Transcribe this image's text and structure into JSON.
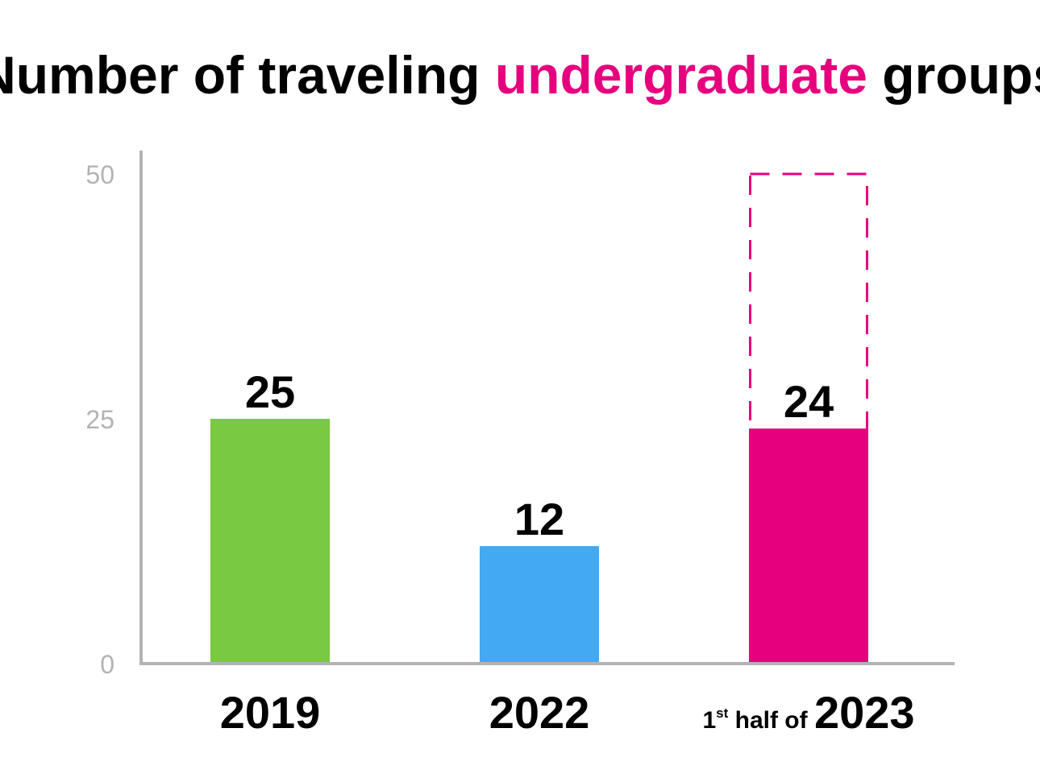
{
  "chart_data": {
    "type": "bar",
    "title_parts": [
      {
        "text": "Number of traveling ",
        "color": "#000000"
      },
      {
        "text": "undergraduate",
        "color": "#e6007e"
      },
      {
        "text": " groups",
        "color": "#000000"
      }
    ],
    "categories": [
      {
        "prefix": "",
        "prefix_sup": "",
        "prefix_rest": "",
        "label": "2019"
      },
      {
        "prefix": "",
        "prefix_sup": "",
        "prefix_rest": "",
        "label": "2022"
      },
      {
        "prefix": "1",
        "prefix_sup": "st",
        "prefix_rest": " half of ",
        "label": "2023"
      }
    ],
    "values": [
      25,
      12,
      24
    ],
    "value_labels": [
      "25",
      "12",
      "24"
    ],
    "colors": [
      "#7ac943",
      "#42a9f2",
      "#e6007e"
    ],
    "projection": {
      "category_index": 2,
      "value": 50,
      "style": "dashed",
      "color": "#e6007e"
    },
    "yticks": [
      0,
      25,
      50
    ],
    "ytick_labels": [
      "0",
      "25",
      "50"
    ],
    "ylim": [
      0,
      50
    ],
    "axis_color": "#b3b3b3",
    "tick_color": "#b3b3b3",
    "grid": false,
    "legend": "none"
  }
}
